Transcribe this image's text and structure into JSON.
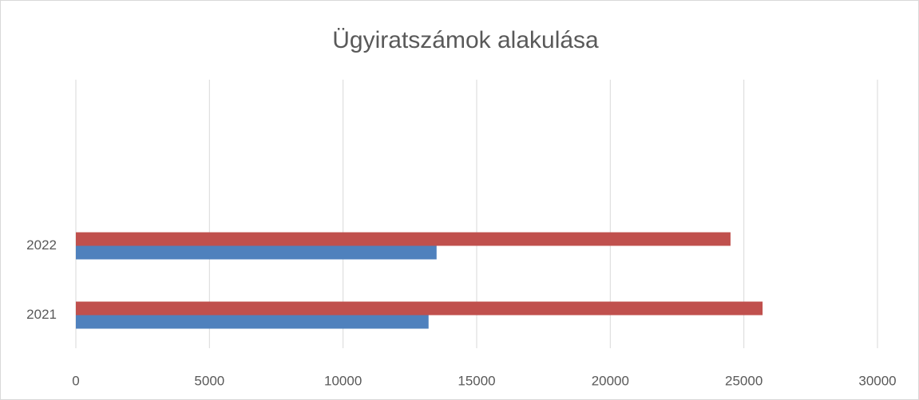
{
  "chart_data": {
    "type": "bar",
    "orientation": "horizontal",
    "title": "Ügyiratszámok alakulása",
    "categories": [
      "2021",
      "2022"
    ],
    "series": [
      {
        "color": "#4f81bd",
        "values": [
          13200,
          13500
        ]
      },
      {
        "color": "#c0504d",
        "values": [
          25700,
          24500
        ]
      }
    ],
    "xlim": [
      0,
      30000
    ],
    "xticks": [
      0,
      5000,
      10000,
      15000,
      20000,
      25000,
      30000
    ],
    "grid": true
  }
}
